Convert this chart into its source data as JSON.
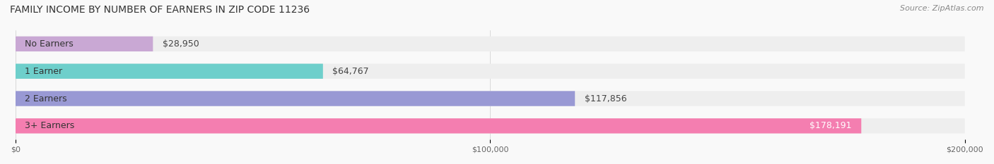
{
  "title": "FAMILY INCOME BY NUMBER OF EARNERS IN ZIP CODE 11236",
  "source": "Source: ZipAtlas.com",
  "categories": [
    "No Earners",
    "1 Earner",
    "2 Earners",
    "3+ Earners"
  ],
  "values": [
    28950,
    64767,
    117856,
    178191
  ],
  "labels": [
    "$28,950",
    "$64,767",
    "$117,856",
    "$178,191"
  ],
  "bar_colors": [
    "#c9a8d4",
    "#6ecfcb",
    "#9999d4",
    "#f47eb0"
  ],
  "bar_bg_color": "#eeeeee",
  "background_color": "#f9f9f9",
  "xmax": 200000,
  "xtick_values": [
    0,
    100000,
    200000
  ],
  "xtick_labels": [
    "$0",
    "$100,000",
    "$200,000"
  ],
  "title_fontsize": 10,
  "source_fontsize": 8,
  "label_fontsize": 9,
  "category_fontsize": 9
}
